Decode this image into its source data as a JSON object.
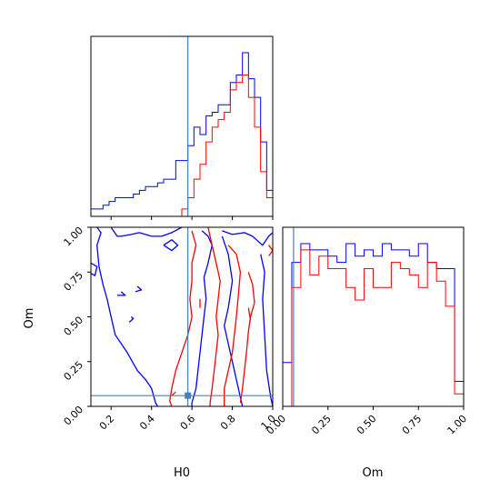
{
  "chart_data": {
    "type": "corner",
    "parameters": [
      "H0",
      "Om"
    ],
    "truth": {
      "H0": 0.58,
      "Om": 0.06
    },
    "truth_color": "#4682b4",
    "series": [
      {
        "color": "#0000ff"
      },
      {
        "color": "#ff0000"
      }
    ],
    "panels": {
      "h0_hist": {
        "type": "histogram",
        "xlim": [
          0.1,
          1.0
        ],
        "bins": [
          0.1,
          0.13,
          0.16,
          0.19,
          0.22,
          0.25,
          0.28,
          0.31,
          0.34,
          0.37,
          0.4,
          0.43,
          0.46,
          0.49,
          0.52,
          0.55,
          0.58,
          0.61,
          0.64,
          0.67,
          0.7,
          0.73,
          0.76,
          0.79,
          0.82,
          0.85,
          0.88,
          0.91,
          0.94,
          0.97,
          1.0
        ],
        "series_counts": [
          [
            2,
            2,
            3,
            4,
            5,
            5,
            5,
            6,
            7,
            8,
            8,
            9,
            10,
            10,
            15,
            15,
            19,
            24,
            22,
            27,
            28,
            30,
            30,
            36,
            38,
            44,
            37,
            32,
            20,
            7
          ],
          [
            0,
            0,
            0,
            0,
            0,
            0,
            0,
            0,
            0,
            0,
            0,
            0,
            0,
            0,
            0,
            2,
            5,
            10,
            14,
            20,
            24,
            26,
            28,
            34,
            36,
            38,
            32,
            24,
            12,
            5
          ]
        ]
      },
      "om_hist": {
        "type": "histogram",
        "xlim": [
          0.0,
          1.0
        ],
        "xticks": [
          "0.00",
          "0.25",
          "0.50",
          "0.75",
          "1.00"
        ],
        "bins": [
          0.0,
          0.05,
          0.1,
          0.15,
          0.2,
          0.25,
          0.3,
          0.35,
          0.4,
          0.45,
          0.5,
          0.55,
          0.6,
          0.65,
          0.7,
          0.75,
          0.8,
          0.85,
          0.9,
          0.95,
          1.0
        ],
        "series_counts": [
          [
            7,
            23,
            26,
            25,
            25,
            24,
            23,
            26,
            24,
            25,
            24,
            26,
            25,
            25,
            24,
            26,
            23,
            22,
            22,
            4
          ],
          [
            0,
            19,
            25,
            21,
            24,
            22,
            22,
            19,
            17,
            22,
            19,
            19,
            23,
            22,
            21,
            19,
            23,
            20,
            16,
            2
          ]
        ]
      },
      "contour": {
        "type": "contour",
        "xlabel": "H0",
        "ylabel": "Om",
        "xlim": [
          0.1,
          1.0
        ],
        "ylim": [
          0.0,
          1.0
        ],
        "xticks": [
          "0.2",
          "0.4",
          "0.6",
          "0.8",
          "1.0"
        ],
        "yticks": [
          "0.00",
          "0.25",
          "0.50",
          "0.75",
          "1.00"
        ],
        "series_lines": [
          [
            [
              [
                0.13,
                1.0
              ],
              [
                0.15,
                0.97
              ],
              [
                0.13,
                0.9
              ],
              [
                0.14,
                0.78
              ],
              [
                0.16,
                0.68
              ],
              [
                0.18,
                0.6
              ],
              [
                0.2,
                0.5
              ],
              [
                0.22,
                0.4
              ],
              [
                0.28,
                0.3
              ],
              [
                0.33,
                0.2
              ],
              [
                0.37,
                0.15
              ],
              [
                0.4,
                0.1
              ],
              [
                0.42,
                0.02
              ],
              [
                0.43,
                0.0
              ]
            ],
            [
              [
                0.2,
                1.0
              ],
              [
                0.23,
                0.95
              ],
              [
                0.25,
                0.95
              ],
              [
                0.3,
                0.96
              ],
              [
                0.34,
                0.97
              ],
              [
                0.4,
                0.95
              ],
              [
                0.45,
                0.95
              ],
              [
                0.5,
                0.97
              ],
              [
                0.55,
                1.0
              ]
            ],
            [
              [
                0.46,
                0.9
              ],
              [
                0.5,
                0.87
              ],
              [
                0.53,
                0.9
              ],
              [
                0.5,
                0.93
              ],
              [
                0.46,
                0.9
              ]
            ],
            [
              [
                0.65,
                0.98
              ],
              [
                0.68,
                0.95
              ],
              [
                0.7,
                0.9
              ],
              [
                0.68,
                0.8
              ],
              [
                0.66,
                0.72
              ],
              [
                0.67,
                0.6
              ],
              [
                0.66,
                0.5
              ],
              [
                0.65,
                0.4
              ],
              [
                0.64,
                0.3
              ],
              [
                0.63,
                0.2
              ],
              [
                0.62,
                0.1
              ],
              [
                0.6,
                0.02
              ],
              [
                0.6,
                0.0
              ]
            ],
            [
              [
                0.75,
                0.98
              ],
              [
                0.8,
                0.96
              ],
              [
                0.86,
                0.97
              ],
              [
                0.9,
                0.95
              ],
              [
                0.93,
                0.92
              ],
              [
                0.95,
                0.9
              ],
              [
                0.98,
                0.95
              ],
              [
                1.0,
                0.97
              ]
            ],
            [
              [
                0.75,
                0.95
              ],
              [
                0.78,
                0.85
              ],
              [
                0.8,
                0.7
              ],
              [
                0.78,
                0.55
              ],
              [
                0.76,
                0.45
              ],
              [
                0.78,
                0.35
              ],
              [
                0.8,
                0.25
              ],
              [
                0.82,
                0.15
              ],
              [
                0.84,
                0.05
              ],
              [
                0.85,
                0.0
              ]
            ],
            [
              [
                0.09,
                0.75
              ],
              [
                0.12,
                0.73
              ],
              [
                0.13,
                0.78
              ],
              [
                0.1,
                0.8
              ]
            ],
            [
              [
                0.23,
                0.62
              ],
              [
                0.27,
                0.62
              ],
              [
                0.25,
                0.64
              ]
            ],
            [
              [
                0.32,
                0.64
              ],
              [
                0.35,
                0.65
              ],
              [
                0.33,
                0.67
              ]
            ],
            [
              [
                0.29,
                0.47
              ],
              [
                0.31,
                0.49
              ],
              [
                0.3,
                0.5
              ]
            ],
            [
              [
                0.94,
                0.85
              ],
              [
                0.96,
                0.75
              ],
              [
                0.95,
                0.6
              ],
              [
                0.96,
                0.4
              ],
              [
                0.97,
                0.2
              ],
              [
                0.99,
                0.05
              ],
              [
                1.0,
                0.0
              ]
            ]
          ],
          [
            [
              [
                0.6,
                0.98
              ],
              [
                0.62,
                0.9
              ],
              [
                0.6,
                0.8
              ],
              [
                0.6,
                0.7
              ],
              [
                0.59,
                0.6
              ],
              [
                0.6,
                0.5
              ],
              [
                0.58,
                0.4
              ],
              [
                0.55,
                0.3
              ],
              [
                0.52,
                0.2
              ],
              [
                0.5,
                0.1
              ],
              [
                0.49,
                0.03
              ],
              [
                0.5,
                0.0
              ]
            ],
            [
              [
                0.68,
                1.0
              ],
              [
                0.7,
                0.9
              ],
              [
                0.72,
                0.8
              ],
              [
                0.74,
                0.7
              ],
              [
                0.73,
                0.6
              ],
              [
                0.72,
                0.5
              ],
              [
                0.73,
                0.4
              ],
              [
                0.72,
                0.3
              ],
              [
                0.71,
                0.2
              ],
              [
                0.7,
                0.1
              ],
              [
                0.69,
                0.02
              ],
              [
                0.69,
                0.0
              ]
            ],
            [
              [
                0.78,
                0.9
              ],
              [
                0.82,
                0.85
              ],
              [
                0.84,
                0.75
              ],
              [
                0.83,
                0.62
              ],
              [
                0.82,
                0.5
              ],
              [
                0.81,
                0.4
              ],
              [
                0.8,
                0.3
              ],
              [
                0.78,
                0.2
              ],
              [
                0.76,
                0.1
              ],
              [
                0.76,
                0.0
              ]
            ],
            [
              [
                0.88,
                0.75
              ],
              [
                0.9,
                0.68
              ],
              [
                0.91,
                0.58
              ],
              [
                0.89,
                0.5
              ],
              [
                0.88,
                0.42
              ],
              [
                0.87,
                0.3
              ],
              [
                0.86,
                0.2
              ],
              [
                0.85,
                0.1
              ],
              [
                0.84,
                0.02
              ]
            ],
            [
              [
                0.98,
                0.9
              ],
              [
                1.0,
                0.87
              ],
              [
                0.98,
                0.84
              ]
            ],
            [
              [
                0.64,
                0.6
              ],
              [
                0.64,
                0.55
              ]
            ],
            [
              [
                0.88,
                0.55
              ],
              [
                0.89,
                0.48
              ]
            ],
            [
              [
                0.5,
                0.06
              ],
              [
                0.52,
                0.08
              ]
            ]
          ]
        ]
      }
    }
  }
}
